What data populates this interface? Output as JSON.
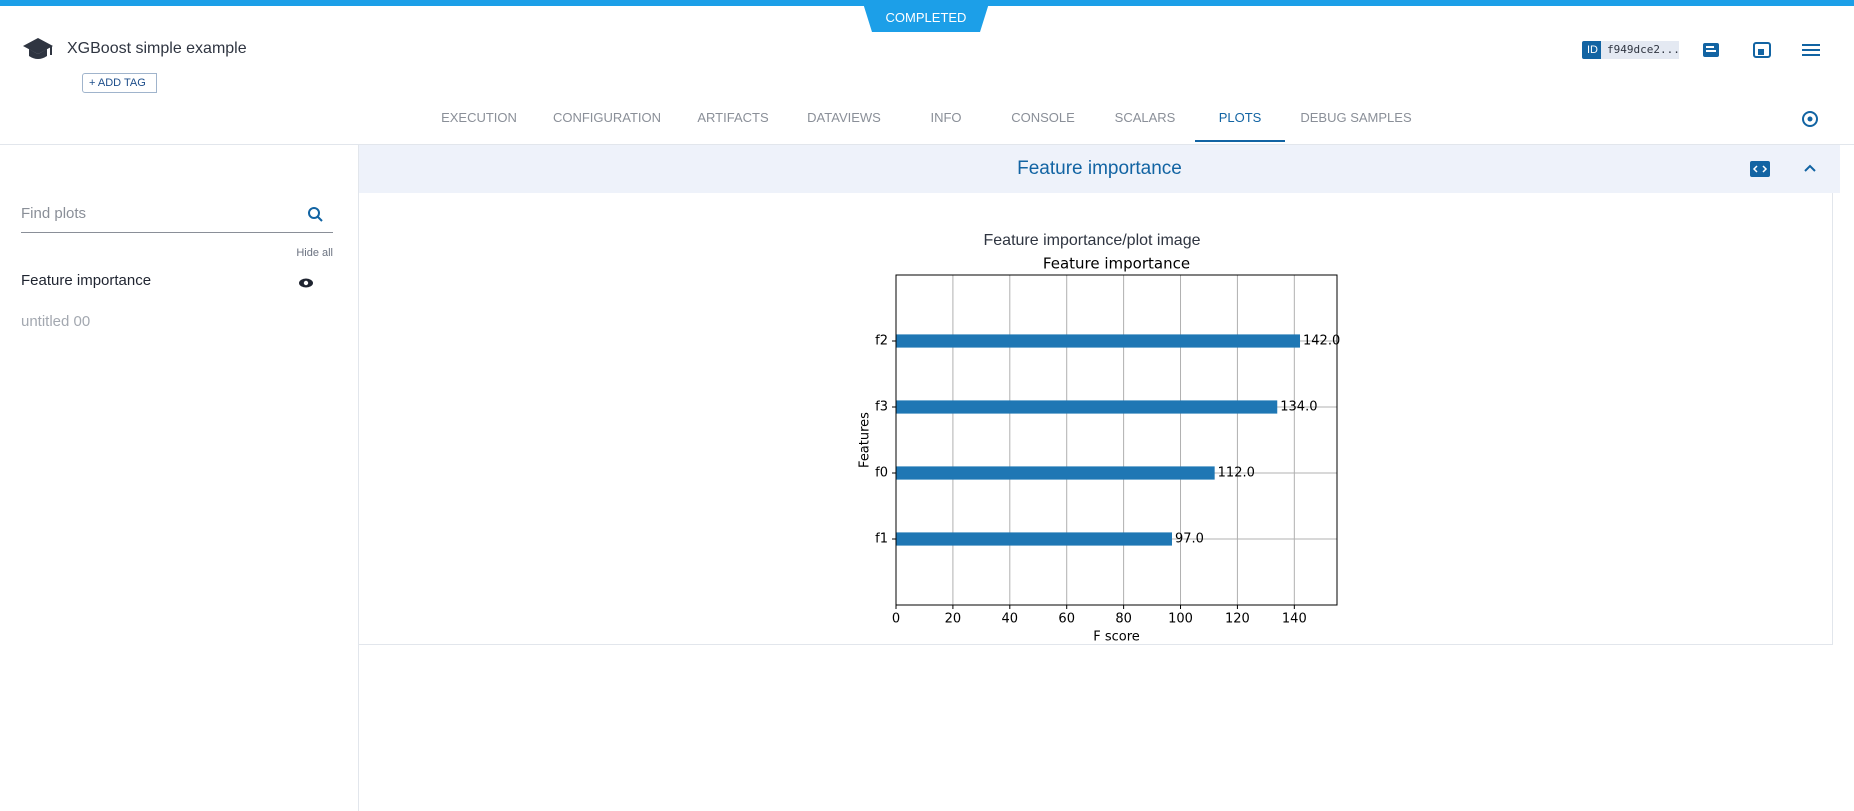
{
  "header": {
    "status": "COMPLETED",
    "title": "XGBoost simple example",
    "add_tag": "ADD TAG",
    "id_label": "ID",
    "id_value": "f949dce2..."
  },
  "tabs": [
    {
      "label": "EXECUTION"
    },
    {
      "label": "CONFIGURATION"
    },
    {
      "label": "ARTIFACTS"
    },
    {
      "label": "DATAVIEWS"
    },
    {
      "label": "INFO"
    },
    {
      "label": "CONSOLE"
    },
    {
      "label": "SCALARS"
    },
    {
      "label": "PLOTS",
      "active": true
    },
    {
      "label": "DEBUG SAMPLES"
    }
  ],
  "sidebar": {
    "search_placeholder": "Find plots",
    "hide_all": "Hide all",
    "items": [
      {
        "label": "Feature importance",
        "visible": true
      },
      {
        "label": "untitled 00",
        "visible": false
      }
    ]
  },
  "panel": {
    "title": "Feature importance"
  },
  "chart_data": {
    "type": "barh",
    "title": "Feature importance/plot image",
    "subtitle": "Feature importance",
    "x_label": "F score",
    "y_label": "Features",
    "categories": [
      "f1",
      "f0",
      "f3",
      "f2"
    ],
    "values": [
      97,
      112,
      134,
      142
    ],
    "value_labels": [
      "97.0",
      "112.0",
      "134.0",
      "142.0"
    ],
    "color": "#1f77b4",
    "xlim": [
      0,
      155
    ],
    "xticks": [
      0,
      20,
      40,
      60,
      80,
      100,
      120,
      140
    ],
    "grid": true
  }
}
